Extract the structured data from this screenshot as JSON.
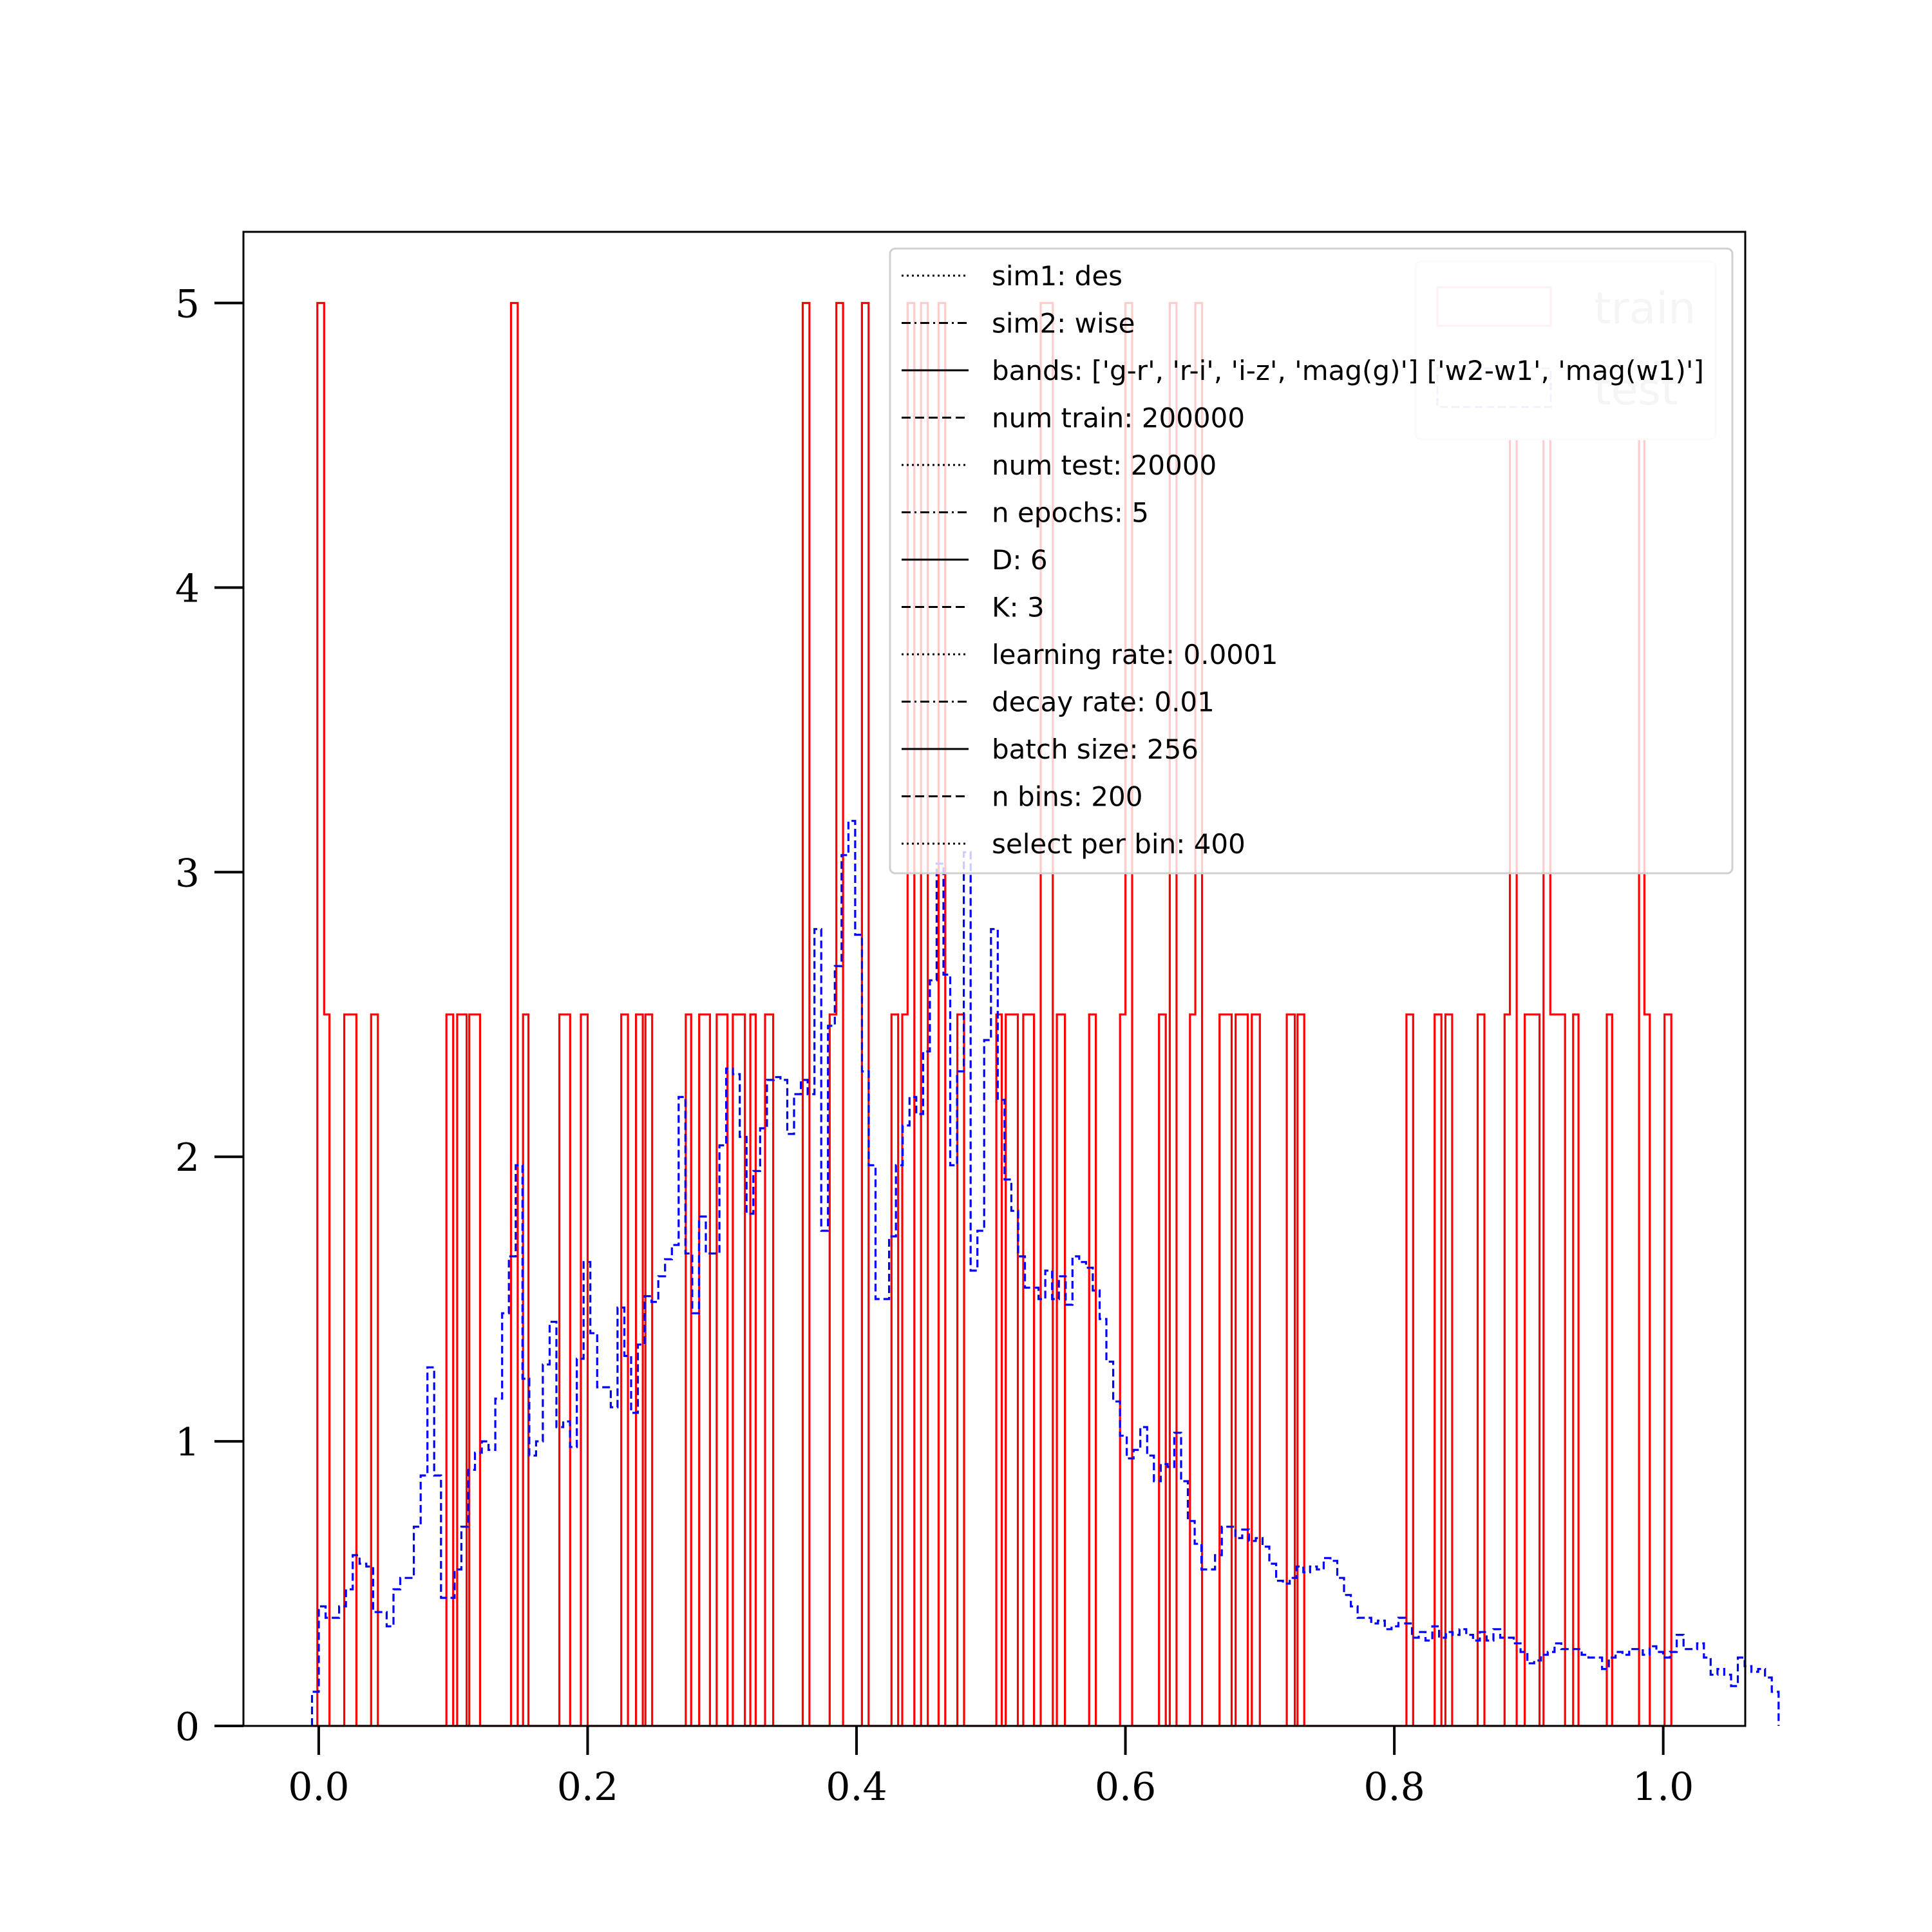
{
  "chart_data": {
    "type": "histogram",
    "title": "",
    "xlabel": "",
    "ylabel": "",
    "xlim": [
      -0.056,
      1.061
    ],
    "ylim": [
      0,
      5.25
    ],
    "x_ticks": [
      0.0,
      0.2,
      0.4,
      0.6,
      0.8,
      1.0
    ],
    "x_tick_labels": [
      "0.0",
      "0.2",
      "0.4",
      "0.6",
      "0.8",
      "1.0"
    ],
    "y_ticks": [
      0,
      1,
      2,
      3,
      4,
      5
    ],
    "y_tick_labels": [
      "0",
      "1",
      "2",
      "3",
      "4",
      "5"
    ],
    "grid": false,
    "series": [
      {
        "name": "train",
        "color": "#ff0000",
        "style": "solid",
        "step_points": [
          [
            -0.005,
            0
          ],
          [
            -0.001,
            0
          ],
          [
            -0.001,
            5.0
          ],
          [
            0.004,
            5.0
          ],
          [
            0.004,
            2.5
          ],
          [
            0.008,
            2.5
          ],
          [
            0.008,
            0
          ],
          [
            0.019,
            0
          ],
          [
            0.019,
            2.5
          ],
          [
            0.028,
            2.5
          ],
          [
            0.028,
            0
          ],
          [
            0.039,
            0
          ],
          [
            0.039,
            2.5
          ],
          [
            0.044,
            2.5
          ],
          [
            0.044,
            0
          ],
          [
            0.095,
            0
          ],
          [
            0.095,
            2.5
          ],
          [
            0.1,
            2.5
          ],
          [
            0.1,
            0
          ],
          [
            0.103,
            0
          ],
          [
            0.103,
            2.5
          ],
          [
            0.11,
            2.5
          ],
          [
            0.11,
            0
          ],
          [
            0.112,
            0
          ],
          [
            0.112,
            2.5
          ],
          [
            0.12,
            2.5
          ],
          [
            0.12,
            0
          ],
          [
            0.143,
            0
          ],
          [
            0.143,
            5.0
          ],
          [
            0.148,
            5.0
          ],
          [
            0.148,
            0
          ],
          [
            0.152,
            0
          ],
          [
            0.152,
            2.5
          ],
          [
            0.156,
            2.5
          ],
          [
            0.156,
            0
          ],
          [
            0.179,
            0
          ],
          [
            0.179,
            2.5
          ],
          [
            0.187,
            2.5
          ],
          [
            0.187,
            0
          ],
          [
            0.195,
            0
          ],
          [
            0.195,
            2.5
          ],
          [
            0.2,
            2.5
          ],
          [
            0.2,
            0
          ],
          [
            0.225,
            0
          ],
          [
            0.225,
            2.5
          ],
          [
            0.23,
            2.5
          ],
          [
            0.23,
            0
          ],
          [
            0.236,
            0
          ],
          [
            0.236,
            2.5
          ],
          [
            0.241,
            2.5
          ],
          [
            0.241,
            0
          ],
          [
            0.243,
            0
          ],
          [
            0.243,
            2.5
          ],
          [
            0.248,
            2.5
          ],
          [
            0.248,
            0
          ],
          [
            0.273,
            0
          ],
          [
            0.273,
            2.5
          ],
          [
            0.277,
            2.5
          ],
          [
            0.277,
            0
          ],
          [
            0.283,
            0
          ],
          [
            0.283,
            2.5
          ],
          [
            0.291,
            2.5
          ],
          [
            0.291,
            0
          ],
          [
            0.296,
            0
          ],
          [
            0.296,
            2.5
          ],
          [
            0.304,
            2.5
          ],
          [
            0.304,
            0
          ],
          [
            0.308,
            0
          ],
          [
            0.308,
            2.5
          ],
          [
            0.317,
            2.5
          ],
          [
            0.317,
            0
          ],
          [
            0.321,
            0
          ],
          [
            0.321,
            2.5
          ],
          [
            0.325,
            2.5
          ],
          [
            0.325,
            0
          ],
          [
            0.332,
            0
          ],
          [
            0.332,
            2.5
          ],
          [
            0.338,
            2.5
          ],
          [
            0.338,
            0
          ],
          [
            0.36,
            0
          ],
          [
            0.36,
            5.0
          ],
          [
            0.365,
            5.0
          ],
          [
            0.365,
            0
          ],
          [
            0.38,
            0
          ],
          [
            0.38,
            2.5
          ],
          [
            0.385,
            2.5
          ],
          [
            0.385,
            5.0
          ],
          [
            0.39,
            5.0
          ],
          [
            0.39,
            0
          ],
          [
            0.404,
            0
          ],
          [
            0.404,
            5.0
          ],
          [
            0.409,
            5.0
          ],
          [
            0.409,
            0
          ],
          [
            0.426,
            0
          ],
          [
            0.426,
            2.5
          ],
          [
            0.431,
            2.5
          ],
          [
            0.431,
            0
          ],
          [
            0.434,
            0
          ],
          [
            0.434,
            2.5
          ],
          [
            0.438,
            2.5
          ],
          [
            0.438,
            5.0
          ],
          [
            0.443,
            5.0
          ],
          [
            0.443,
            0
          ],
          [
            0.448,
            0
          ],
          [
            0.448,
            5.0
          ],
          [
            0.453,
            5.0
          ],
          [
            0.453,
            0
          ],
          [
            0.461,
            0
          ],
          [
            0.461,
            5.0
          ],
          [
            0.466,
            5.0
          ],
          [
            0.466,
            0
          ],
          [
            0.475,
            0
          ],
          [
            0.475,
            2.5
          ],
          [
            0.48,
            2.5
          ],
          [
            0.48,
            0
          ],
          [
            0.504,
            0
          ],
          [
            0.504,
            2.5
          ],
          [
            0.508,
            2.5
          ],
          [
            0.508,
            0
          ],
          [
            0.511,
            0
          ],
          [
            0.511,
            2.5
          ],
          [
            0.52,
            2.5
          ],
          [
            0.52,
            0
          ],
          [
            0.524,
            0
          ],
          [
            0.524,
            2.5
          ],
          [
            0.532,
            2.5
          ],
          [
            0.532,
            0
          ],
          [
            0.537,
            0
          ],
          [
            0.537,
            5.0
          ],
          [
            0.546,
            5.0
          ],
          [
            0.546,
            0
          ],
          [
            0.549,
            0
          ],
          [
            0.549,
            2.5
          ],
          [
            0.555,
            2.5
          ],
          [
            0.555,
            0
          ],
          [
            0.573,
            0
          ],
          [
            0.573,
            2.5
          ],
          [
            0.578,
            2.5
          ],
          [
            0.578,
            0
          ],
          [
            0.596,
            0
          ],
          [
            0.596,
            2.5
          ],
          [
            0.6,
            2.5
          ],
          [
            0.6,
            5.0
          ],
          [
            0.605,
            5.0
          ],
          [
            0.605,
            0
          ],
          [
            0.625,
            0
          ],
          [
            0.625,
            2.5
          ],
          [
            0.63,
            2.5
          ],
          [
            0.63,
            0
          ],
          [
            0.633,
            0
          ],
          [
            0.633,
            5.0
          ],
          [
            0.638,
            5.0
          ],
          [
            0.638,
            0
          ],
          [
            0.648,
            0
          ],
          [
            0.648,
            2.5
          ],
          [
            0.652,
            2.5
          ],
          [
            0.652,
            5.0
          ],
          [
            0.657,
            5.0
          ],
          [
            0.657,
            0
          ],
          [
            0.67,
            0
          ],
          [
            0.67,
            2.5
          ],
          [
            0.679,
            2.5
          ],
          [
            0.679,
            0
          ],
          [
            0.682,
            0
          ],
          [
            0.682,
            2.5
          ],
          [
            0.691,
            2.5
          ],
          [
            0.691,
            0
          ],
          [
            0.694,
            0
          ],
          [
            0.694,
            2.5
          ],
          [
            0.7,
            2.5
          ],
          [
            0.7,
            0
          ],
          [
            0.72,
            0
          ],
          [
            0.72,
            2.5
          ],
          [
            0.726,
            2.5
          ],
          [
            0.726,
            0
          ],
          [
            0.728,
            0
          ],
          [
            0.728,
            2.5
          ],
          [
            0.733,
            2.5
          ],
          [
            0.733,
            0
          ],
          [
            0.809,
            0
          ],
          [
            0.809,
            2.5
          ],
          [
            0.814,
            2.5
          ],
          [
            0.814,
            0
          ],
          [
            0.83,
            0
          ],
          [
            0.83,
            2.5
          ],
          [
            0.835,
            2.5
          ],
          [
            0.835,
            0
          ],
          [
            0.838,
            0
          ],
          [
            0.838,
            2.5
          ],
          [
            0.843,
            2.5
          ],
          [
            0.843,
            0
          ],
          [
            0.862,
            0
          ],
          [
            0.862,
            2.5
          ],
          [
            0.867,
            2.5
          ],
          [
            0.867,
            0
          ],
          [
            0.882,
            0
          ],
          [
            0.882,
            2.5
          ],
          [
            0.886,
            2.5
          ],
          [
            0.886,
            5.0
          ],
          [
            0.891,
            5.0
          ],
          [
            0.891,
            0
          ],
          [
            0.897,
            0
          ],
          [
            0.897,
            2.5
          ],
          [
            0.908,
            2.5
          ],
          [
            0.908,
            0
          ],
          [
            0.911,
            0
          ],
          [
            0.911,
            5.0
          ],
          [
            0.916,
            5.0
          ],
          [
            0.916,
            2.5
          ],
          [
            0.927,
            2.5
          ],
          [
            0.927,
            0
          ],
          [
            0.933,
            0
          ],
          [
            0.933,
            2.5
          ],
          [
            0.937,
            2.5
          ],
          [
            0.937,
            0
          ],
          [
            0.958,
            0
          ],
          [
            0.958,
            2.5
          ],
          [
            0.962,
            2.5
          ],
          [
            0.962,
            0
          ],
          [
            0.982,
            0
          ],
          [
            0.982,
            5.0
          ],
          [
            0.986,
            5.0
          ],
          [
            0.986,
            2.5
          ],
          [
            0.99,
            2.5
          ],
          [
            0.99,
            0
          ],
          [
            1.001,
            0
          ],
          [
            1.001,
            2.5
          ],
          [
            1.006,
            2.5
          ],
          [
            1.006,
            0
          ]
        ]
      },
      {
        "name": "test",
        "color": "#0000ff",
        "style": "dashed",
        "bin_start": -0.005,
        "bin_width": 0.00505,
        "values": [
          0.12,
          0.42,
          0.38,
          0.38,
          0.42,
          0.48,
          0.6,
          0.57,
          0.56,
          0.4,
          0.4,
          0.35,
          0.48,
          0.52,
          0.52,
          0.7,
          0.88,
          1.26,
          0.88,
          0.45,
          0.45,
          0.55,
          0.7,
          0.9,
          0.96,
          1.0,
          0.97,
          1.15,
          1.45,
          1.65,
          1.97,
          1.22,
          0.95,
          1.0,
          1.27,
          1.42,
          1.05,
          1.07,
          0.98,
          1.29,
          1.63,
          1.38,
          1.19,
          1.19,
          1.12,
          1.47,
          1.3,
          1.1,
          1.34,
          1.51,
          1.49,
          1.58,
          1.64,
          1.69,
          2.21,
          1.66,
          1.45,
          1.79,
          1.66,
          1.66,
          2.04,
          2.31,
          2.29,
          2.07,
          1.8,
          1.95,
          2.1,
          2.27,
          2.28,
          2.27,
          2.08,
          2.22,
          2.27,
          2.22,
          2.8,
          1.74,
          2.46,
          2.67,
          3.06,
          3.18,
          2.78,
          2.3,
          1.97,
          1.5,
          1.5,
          1.72,
          1.97,
          2.11,
          2.21,
          2.15,
          2.37,
          2.62,
          3.03,
          2.64,
          1.97,
          2.3,
          3.07,
          1.6,
          1.74,
          2.41,
          2.8,
          2.2,
          1.92,
          1.81,
          1.65,
          1.54,
          1.54,
          1.5,
          1.6,
          1.5,
          1.58,
          1.48,
          1.65,
          1.63,
          1.61,
          1.53,
          1.43,
          1.28,
          1.14,
          1.02,
          0.94,
          0.97,
          1.05,
          0.95,
          0.86,
          0.92,
          0.91,
          1.03,
          0.86,
          0.72,
          0.64,
          0.55,
          0.55,
          0.6,
          0.7,
          0.7,
          0.66,
          0.69,
          0.65,
          0.66,
          0.63,
          0.57,
          0.51,
          0.5,
          0.52,
          0.56,
          0.54,
          0.56,
          0.55,
          0.59,
          0.58,
          0.52,
          0.46,
          0.42,
          0.38,
          0.38,
          0.36,
          0.37,
          0.34,
          0.35,
          0.38,
          0.36,
          0.31,
          0.33,
          0.3,
          0.35,
          0.31,
          0.33,
          0.32,
          0.34,
          0.32,
          0.3,
          0.33,
          0.3,
          0.34,
          0.31,
          0.31,
          0.29,
          0.26,
          0.22,
          0.23,
          0.25,
          0.26,
          0.29,
          0.27,
          0.27,
          0.27,
          0.25,
          0.24,
          0.24,
          0.2,
          0.24,
          0.26,
          0.25,
          0.27,
          0.27,
          0.25,
          0.28,
          0.26,
          0.24,
          0.26,
          0.32,
          0.27,
          0.27,
          0.29,
          0.24,
          0.18,
          0.2,
          0.18,
          0.14,
          0.24,
          0.21,
          0.19,
          0.2,
          0.17,
          0.12
        ]
      }
    ],
    "legend_upper": {
      "placement": "upper-right",
      "entries": [
        {
          "label": "sim1: des",
          "style": "dotted"
        },
        {
          "label": "sim2: wise",
          "style": "dashdot"
        },
        {
          "label": "bands: ['g-r', 'r-i', 'i-z', 'mag(g)'] ['w2-w1', 'mag(w1)']",
          "style": "solid"
        },
        {
          "label": "num train: 200000",
          "style": "dashed"
        },
        {
          "label": "num test: 20000",
          "style": "dotted"
        },
        {
          "label": "n epochs: 5",
          "style": "dashdot"
        },
        {
          "label": "D: 6",
          "style": "solid"
        },
        {
          "label": "K: 3",
          "style": "dashed"
        },
        {
          "label": "learning rate: 0.0001",
          "style": "dotted"
        },
        {
          "label": "decay rate: 0.01",
          "style": "dashdot"
        },
        {
          "label": "batch size: 256",
          "style": "solid"
        },
        {
          "label": "n bins: 200",
          "style": "dashed"
        },
        {
          "label": "select per bin: 400",
          "style": "dotted"
        }
      ]
    },
    "legend_series": {
      "placement": "upper-right",
      "entries": [
        {
          "label": "train",
          "color": "#ff0000",
          "style": "solid"
        },
        {
          "label": "test",
          "color": "#0000ff",
          "style": "dashed"
        }
      ]
    }
  }
}
